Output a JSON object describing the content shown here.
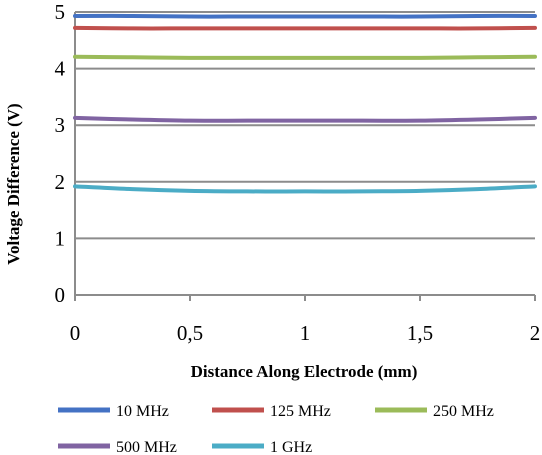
{
  "chart_data": {
    "type": "line",
    "title": "",
    "xlabel": "Distance Along Electrode (mm)",
    "ylabel": "Voltage Difference (V)",
    "xlim": [
      0,
      2
    ],
    "ylim": [
      0,
      5
    ],
    "x_ticks": [
      0,
      0.5,
      1,
      1.5,
      2
    ],
    "x_tick_labels": [
      "0",
      "0,5",
      "1",
      "1,5",
      "2"
    ],
    "y_ticks": [
      0,
      1,
      2,
      3,
      4,
      5
    ],
    "y_tick_labels": [
      "0",
      "1",
      "2",
      "3",
      "4",
      "5"
    ],
    "grid": "horizontal",
    "legend_position": "bottom",
    "series": [
      {
        "name": "10 MHz",
        "color": "#4472C4",
        "x": [
          0,
          0.25,
          0.5,
          0.75,
          1,
          1.25,
          1.5,
          1.75,
          2
        ],
        "y": [
          4.93,
          4.93,
          4.92,
          4.92,
          4.92,
          4.92,
          4.92,
          4.93,
          4.93
        ]
      },
      {
        "name": "125 MHz",
        "color": "#C0504D",
        "x": [
          0,
          0.25,
          0.5,
          0.75,
          1,
          1.25,
          1.5,
          1.75,
          2
        ],
        "y": [
          4.72,
          4.71,
          4.71,
          4.71,
          4.71,
          4.71,
          4.71,
          4.71,
          4.72
        ]
      },
      {
        "name": "250 MHz",
        "color": "#9BBB59",
        "x": [
          0,
          0.25,
          0.5,
          0.75,
          1,
          1.25,
          1.5,
          1.75,
          2
        ],
        "y": [
          4.21,
          4.2,
          4.19,
          4.19,
          4.19,
          4.19,
          4.19,
          4.2,
          4.21
        ]
      },
      {
        "name": "500 MHz",
        "color": "#8064A2",
        "x": [
          0,
          0.25,
          0.5,
          0.75,
          1,
          1.25,
          1.5,
          1.75,
          2
        ],
        "y": [
          3.13,
          3.1,
          3.08,
          3.08,
          3.08,
          3.08,
          3.08,
          3.1,
          3.13
        ]
      },
      {
        "name": "1 GHz",
        "color": "#4BACC6",
        "x": [
          0,
          0.25,
          0.5,
          0.75,
          1,
          1.25,
          1.5,
          1.75,
          2
        ],
        "y": [
          1.92,
          1.87,
          1.84,
          1.83,
          1.83,
          1.83,
          1.84,
          1.87,
          1.92
        ]
      }
    ]
  }
}
